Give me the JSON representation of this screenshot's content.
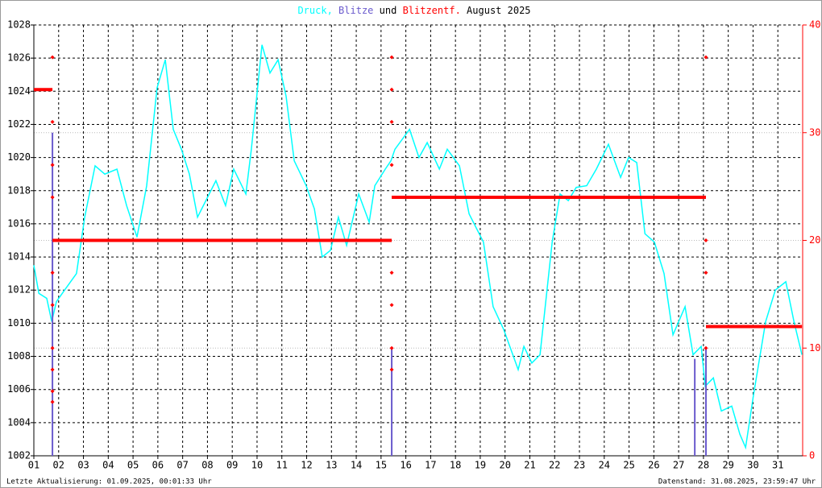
{
  "chart_data": {
    "type": "line",
    "title": "August 2025",
    "title_connector": "und",
    "xlim": [
      1,
      32
    ],
    "xticks": [
      {
        "value": 1,
        "label": "01"
      },
      {
        "value": 2,
        "label": "02"
      },
      {
        "value": 3,
        "label": "03"
      },
      {
        "value": 4,
        "label": "04"
      },
      {
        "value": 5,
        "label": "05"
      },
      {
        "value": 6,
        "label": "06"
      },
      {
        "value": 7,
        "label": "07"
      },
      {
        "value": 8,
        "label": "08"
      },
      {
        "value": 9,
        "label": "09"
      },
      {
        "value": 10,
        "label": "10"
      },
      {
        "value": 11,
        "label": "11"
      },
      {
        "value": 12,
        "label": "12"
      },
      {
        "value": 13,
        "label": "13"
      },
      {
        "value": 14,
        "label": "14"
      },
      {
        "value": 15,
        "label": "15"
      },
      {
        "value": 16,
        "label": "16"
      },
      {
        "value": 17,
        "label": "17"
      },
      {
        "value": 18,
        "label": "18"
      },
      {
        "value": 19,
        "label": "19"
      },
      {
        "value": 20,
        "label": "20"
      },
      {
        "value": 21,
        "label": "21"
      },
      {
        "value": 22,
        "label": "22"
      },
      {
        "value": 23,
        "label": "23"
      },
      {
        "value": 24,
        "label": "24"
      },
      {
        "value": 25,
        "label": "25"
      },
      {
        "value": 26,
        "label": "26"
      },
      {
        "value": 27,
        "label": "27"
      },
      {
        "value": 28,
        "label": "28"
      },
      {
        "value": 29,
        "label": "29"
      },
      {
        "value": 30,
        "label": "30"
      },
      {
        "value": 31,
        "label": "31"
      }
    ],
    "ylim": [
      1002,
      1028
    ],
    "yticks": [
      1002,
      1004,
      1006,
      1008,
      1010,
      1012,
      1014,
      1016,
      1018,
      1020,
      1022,
      1024,
      1026,
      1028
    ],
    "y2lim": [
      0,
      40
    ],
    "y2ticks": [
      0,
      10,
      20,
      30,
      40
    ],
    "y2color": "#ff0000",
    "grid": true,
    "series": [
      {
        "name": "Druck,",
        "color": "#00ffff",
        "mark": "line",
        "axis": "y",
        "x": [
          1.0,
          1.2,
          1.52,
          1.72,
          1.91,
          2.24,
          2.72,
          3.05,
          3.47,
          3.86,
          4.35,
          4.74,
          5.16,
          5.55,
          5.97,
          6.3,
          6.62,
          6.95,
          7.27,
          7.6,
          8.34,
          8.73,
          9.06,
          9.55,
          9.77,
          10.2,
          10.52,
          10.85,
          11.17,
          11.5,
          11.98,
          12.31,
          12.63,
          12.96,
          13.28,
          13.61,
          14.1,
          14.52,
          14.75,
          15.17,
          15.4,
          15.56,
          16.15,
          16.53,
          16.86,
          17.35,
          17.67,
          18.16,
          18.55,
          19.13,
          19.52,
          19.95,
          20.53,
          20.76,
          21.08,
          21.41,
          21.9,
          22.22,
          22.55,
          22.87,
          23.29,
          23.68,
          24.17,
          24.66,
          24.98,
          25.31,
          25.64,
          26.02,
          26.41,
          26.77,
          27.26,
          27.58,
          27.91,
          28.07,
          28.4,
          28.72,
          29.14,
          29.47,
          29.7,
          30.02,
          30.51,
          30.9,
          31.32,
          31.65,
          31.97
        ],
        "values": [
          1013.5,
          1011.8,
          1011.5,
          1010.1,
          1011.3,
          1012,
          1013,
          1016.4,
          1019.5,
          1019,
          1019.3,
          1017.1,
          1015.2,
          1018.3,
          1024.2,
          1025.9,
          1021.7,
          1020.5,
          1019,
          1016.4,
          1018.6,
          1017.1,
          1019.3,
          1017.8,
          1020.5,
          1026.8,
          1025.1,
          1025.9,
          1023.7,
          1019.8,
          1018.3,
          1016.9,
          1014,
          1014.4,
          1016.4,
          1014.7,
          1017.8,
          1016.1,
          1018.3,
          1019.3,
          1019.8,
          1020.5,
          1021.7,
          1020,
          1020.9,
          1019.3,
          1020.5,
          1019.5,
          1016.6,
          1014.9,
          1011,
          1009.6,
          1007.2,
          1008.6,
          1007.6,
          1008.1,
          1014.9,
          1017.8,
          1017.4,
          1018.2,
          1018.3,
          1019.3,
          1020.8,
          1018.8,
          1020,
          1019.7,
          1015.4,
          1014.9,
          1013,
          1009.3,
          1011,
          1008.1,
          1008.6,
          1006.2,
          1006.7,
          1004.7,
          1005,
          1003.3,
          1002.5,
          1005.7,
          1010.1,
          1012,
          1012.5,
          1010.1,
          1008.1
        ]
      },
      {
        "name": "Blitze",
        "color": "#6a5acd",
        "mark": "stem",
        "axis": "y2",
        "x": [
          1.75,
          15.43,
          27.65,
          28.1
        ],
        "values": [
          30,
          10,
          9,
          10
        ]
      },
      {
        "name": "Blitzentf.",
        "color": "#ff0000",
        "mark": "step",
        "axis": "y2",
        "x": [
          1.0,
          1.75,
          15.43,
          28.1
        ],
        "x_end": [
          1.75,
          15.43,
          28.1,
          31.97
        ],
        "values": [
          34,
          20,
          24,
          12
        ]
      },
      {
        "color": "#ff0000",
        "mark": "dots",
        "axis": "y2",
        "x": [
          1.75,
          1.75,
          1.75,
          1.75,
          1.75,
          1.75,
          1.75,
          1.75,
          1.75,
          1.75,
          15.43,
          15.43,
          15.43,
          15.43,
          15.43,
          15.43,
          15.43,
          15.43,
          28.1,
          28.1,
          28.1,
          28.1
        ],
        "values": [
          37,
          31,
          27,
          24,
          17,
          14,
          10,
          8,
          6,
          5,
          37,
          34,
          31,
          27,
          17,
          14,
          10,
          8,
          37,
          20,
          17,
          10
        ]
      }
    ]
  },
  "footer": {
    "left": "Letzte Aktualisierung: 01.09.2025, 00:01:33 Uhr",
    "right": "Datenstand: 31.08.2025, 23:59:47 Uhr"
  }
}
